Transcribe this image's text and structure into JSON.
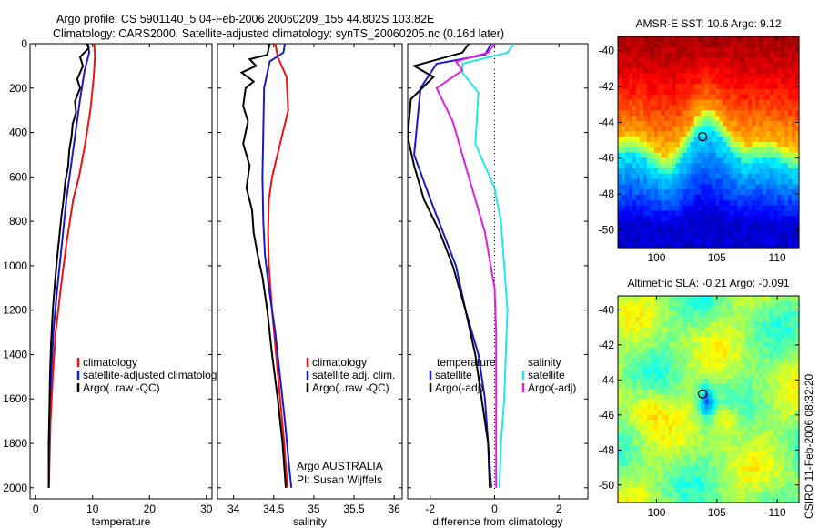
{
  "header": {
    "line1": "Argo profile: CS 5901140_5 04-Feb-2006 20060209_155 44.802S 103.82E",
    "line2": "Climatology: CARS2000. Satellite-adjusted climatology: synTS_20060205.nc (0.16d later)"
  },
  "side_text": "CSIRO 11-Feb-2006 08:32:20",
  "colors": {
    "climatology": "#ee1111",
    "satellite": "#1a1acc",
    "argo": "#000000",
    "sat_salinity": "#22e5ee",
    "argo_salinity": "#e020e0"
  },
  "chart_data": [
    {
      "type": "line",
      "name": "temperature-panel",
      "xlabel": "temperature",
      "ylabel": "",
      "xlim": [
        -1,
        31
      ],
      "ylim": [
        2050,
        0
      ],
      "y_reversed": true,
      "xticks": [
        0,
        10,
        20,
        30
      ],
      "yticks": [
        0,
        200,
        400,
        600,
        800,
        1000,
        1200,
        1400,
        1600,
        1800,
        2000
      ],
      "legend": [
        "climatology",
        "satellite-adjusted climatolog",
        "Argo(..raw -QC)"
      ],
      "series": [
        {
          "key": "clim",
          "color": "#ee1111",
          "points": [
            [
              10.3,
              0
            ],
            [
              10.4,
              60
            ],
            [
              10.2,
              150
            ],
            [
              9.6,
              300
            ],
            [
              8.7,
              450
            ],
            [
              7.6,
              600
            ],
            [
              6.6,
              700
            ],
            [
              5.4,
              900
            ],
            [
              4.4,
              1100
            ],
            [
              3.5,
              1300
            ],
            [
              3.0,
              1500
            ],
            [
              2.6,
              1700
            ],
            [
              2.4,
              1900
            ],
            [
              2.3,
              2000
            ]
          ]
        },
        {
          "key": "sat",
          "color": "#1a1acc",
          "points": [
            [
              9.2,
              0
            ],
            [
              9.4,
              40
            ],
            [
              8.6,
              120
            ],
            [
              7.8,
              250
            ],
            [
              7.0,
              400
            ],
            [
              6.2,
              550
            ],
            [
              5.4,
              700
            ],
            [
              4.8,
              850
            ],
            [
              4.2,
              1000
            ],
            [
              3.6,
              1150
            ],
            [
              3.1,
              1300
            ],
            [
              2.8,
              1450
            ],
            [
              2.5,
              1600
            ],
            [
              2.3,
              1800
            ],
            [
              2.3,
              2000
            ]
          ]
        },
        {
          "key": "argo",
          "color": "#000000",
          "points": [
            [
              9.0,
              0
            ],
            [
              9.3,
              20
            ],
            [
              7.8,
              60
            ],
            [
              8.3,
              100
            ],
            [
              7.3,
              160
            ],
            [
              7.8,
              200
            ],
            [
              6.9,
              260
            ],
            [
              7.1,
              310
            ],
            [
              6.5,
              360
            ],
            [
              6.3,
              420
            ],
            [
              5.9,
              480
            ],
            [
              5.7,
              550
            ],
            [
              5.2,
              620
            ],
            [
              4.9,
              700
            ],
            [
              4.5,
              780
            ],
            [
              4.1,
              880
            ],
            [
              3.7,
              980
            ],
            [
              3.3,
              1100
            ],
            [
              3.0,
              1200
            ],
            [
              2.7,
              1350
            ],
            [
              2.5,
              1500
            ],
            [
              2.4,
              1650
            ],
            [
              2.3,
              1800
            ],
            [
              2.3,
              2000
            ]
          ]
        }
      ]
    },
    {
      "type": "line",
      "name": "salinity-panel",
      "xlabel": "salinity",
      "ylabel": "",
      "xlim": [
        33.8,
        36.1
      ],
      "ylim": [
        2050,
        0
      ],
      "y_reversed": true,
      "xticks": [
        34,
        34.5,
        35,
        35.5,
        36
      ],
      "legend": [
        "climatology",
        "satellite adj. clim.",
        "Argo(..raw -QC)"
      ],
      "annotations": [
        "Argo AUSTRALIA",
        "PI: Susan Wijffels"
      ],
      "series": [
        {
          "key": "clim",
          "color": "#ee1111",
          "points": [
            [
              34.52,
              0
            ],
            [
              34.55,
              60
            ],
            [
              34.66,
              150
            ],
            [
              34.68,
              300
            ],
            [
              34.58,
              450
            ],
            [
              34.48,
              600
            ],
            [
              34.44,
              700
            ],
            [
              34.43,
              850
            ],
            [
              34.44,
              1000
            ],
            [
              34.48,
              1200
            ],
            [
              34.53,
              1400
            ],
            [
              34.58,
              1600
            ],
            [
              34.63,
              1800
            ],
            [
              34.67,
              2000
            ]
          ]
        },
        {
          "key": "sat",
          "color": "#1a1acc",
          "points": [
            [
              34.64,
              0
            ],
            [
              34.62,
              40
            ],
            [
              34.45,
              80
            ],
            [
              34.38,
              200
            ],
            [
              34.37,
              400
            ],
            [
              34.36,
              600
            ],
            [
              34.37,
              800
            ],
            [
              34.39,
              950
            ],
            [
              34.44,
              1100
            ],
            [
              34.52,
              1300
            ],
            [
              34.58,
              1500
            ],
            [
              34.64,
              1700
            ],
            [
              34.69,
              1900
            ],
            [
              34.72,
              2000
            ]
          ]
        },
        {
          "key": "argo",
          "color": "#000000",
          "points": [
            [
              34.45,
              0
            ],
            [
              34.42,
              50
            ],
            [
              34.2,
              70
            ],
            [
              34.28,
              100
            ],
            [
              34.1,
              130
            ],
            [
              34.25,
              170
            ],
            [
              34.15,
              200
            ],
            [
              34.12,
              280
            ],
            [
              34.18,
              350
            ],
            [
              34.12,
              450
            ],
            [
              34.2,
              550
            ],
            [
              34.16,
              650
            ],
            [
              34.23,
              750
            ],
            [
              34.25,
              850
            ],
            [
              34.3,
              950
            ],
            [
              34.36,
              1050
            ],
            [
              34.42,
              1200
            ],
            [
              34.48,
              1400
            ],
            [
              34.55,
              1600
            ],
            [
              34.61,
              1800
            ],
            [
              34.65,
              2000
            ]
          ]
        }
      ]
    },
    {
      "type": "line",
      "name": "difference-panel",
      "xlabel": "difference from climatology",
      "ylabel": "",
      "xlim": [
        -2.7,
        2.9
      ],
      "ylim": [
        2050,
        0
      ],
      "y_reversed": true,
      "xticks": [
        -2,
        0,
        2
      ],
      "legend_left": [
        "temperature",
        "satellite",
        "Argo(-adj)"
      ],
      "legend_right": [
        "salinity",
        "satellite",
        "Argo(-adj)"
      ],
      "series": [
        {
          "key": "t_sat",
          "color": "#1a1acc",
          "points": [
            [
              -0.1,
              0
            ],
            [
              -0.3,
              50
            ],
            [
              -1.8,
              90
            ],
            [
              -2.3,
              200
            ],
            [
              -2.4,
              350
            ],
            [
              -2.5,
              500
            ],
            [
              -2.0,
              700
            ],
            [
              -1.6,
              850
            ],
            [
              -1.2,
              1000
            ],
            [
              -0.9,
              1200
            ],
            [
              -0.5,
              1400
            ],
            [
              -0.3,
              1600
            ],
            [
              -0.2,
              1800
            ],
            [
              -0.1,
              2000
            ]
          ]
        },
        {
          "key": "t_argo",
          "color": "#000000",
          "points": [
            [
              -0.8,
              0
            ],
            [
              -1.0,
              40
            ],
            [
              -2.5,
              100
            ],
            [
              -1.9,
              150
            ],
            [
              -2.6,
              250
            ],
            [
              -2.7,
              420
            ],
            [
              -2.5,
              550
            ],
            [
              -2.2,
              700
            ],
            [
              -1.7,
              850
            ],
            [
              -1.3,
              1000
            ],
            [
              -0.9,
              1200
            ],
            [
              -0.6,
              1400
            ],
            [
              -0.4,
              1600
            ],
            [
              -0.2,
              1800
            ],
            [
              -0.15,
              2000
            ]
          ]
        },
        {
          "key": "s_sat",
          "color": "#22e5ee",
          "points": [
            [
              0.6,
              0
            ],
            [
              0.4,
              40
            ],
            [
              -1.0,
              90
            ],
            [
              -1.0,
              130
            ],
            [
              -0.5,
              220
            ],
            [
              -0.6,
              450
            ],
            [
              0.0,
              650
            ],
            [
              0.2,
              800
            ],
            [
              0.3,
              1000
            ],
            [
              0.4,
              1200
            ],
            [
              0.35,
              1400
            ],
            [
              0.3,
              1600
            ],
            [
              0.2,
              1800
            ],
            [
              0.15,
              2000
            ]
          ]
        },
        {
          "key": "s_argo",
          "color": "#e020e0",
          "points": [
            [
              0.0,
              0
            ],
            [
              -0.2,
              40
            ],
            [
              -1.2,
              80
            ],
            [
              -1.0,
              120
            ],
            [
              -1.8,
              200
            ],
            [
              -1.3,
              350
            ],
            [
              -0.9,
              550
            ],
            [
              -0.6,
              700
            ],
            [
              -0.3,
              850
            ],
            [
              0.0,
              1100
            ],
            [
              0.05,
              1300
            ],
            [
              0.05,
              1500
            ],
            [
              0.05,
              1700
            ],
            [
              0.05,
              2000
            ]
          ]
        }
      ]
    },
    {
      "type": "heatmap",
      "name": "sst-map",
      "title": "AMSR-E SST: 10.6 Argo: 9.12",
      "xticks": [
        100,
        105,
        110
      ],
      "yticks": [
        -40,
        -42,
        -44,
        -46,
        -48,
        -50
      ],
      "xlim": [
        96.8,
        111.8
      ],
      "ylim": [
        -51,
        -39.2
      ],
      "marker": [
        103.82,
        -44.8
      ]
    },
    {
      "type": "heatmap",
      "name": "sla-map",
      "title": "Altimetric SLA: -0.21 Argo: -0.091",
      "xticks": [
        100,
        105,
        110
      ],
      "yticks": [
        -40,
        -42,
        -44,
        -46,
        -48,
        -50
      ],
      "xlim": [
        96.8,
        111.8
      ],
      "ylim": [
        -51,
        -39.2
      ],
      "marker": [
        103.82,
        -44.8
      ]
    }
  ]
}
